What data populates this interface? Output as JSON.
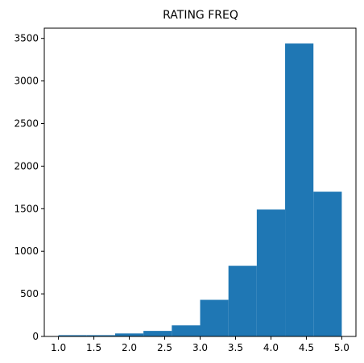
{
  "chart_data": {
    "type": "histogram",
    "title": "RATING FREQ",
    "xlabel": "",
    "ylabel": "",
    "xlim": [
      0.8,
      5.2
    ],
    "ylim": [
      0,
      3620
    ],
    "x_ticks": [
      "1.0",
      "1.5",
      "2.0",
      "2.5",
      "3.0",
      "3.5",
      "4.0",
      "4.5",
      "5.0"
    ],
    "y_ticks": [
      "0",
      "500",
      "1000",
      "1500",
      "2000",
      "2500",
      "3000",
      "3500"
    ],
    "bins": [
      {
        "from": 1.0,
        "to": 1.4,
        "value": 15
      },
      {
        "from": 1.4,
        "to": 1.8,
        "value": 15
      },
      {
        "from": 1.8,
        "to": 2.2,
        "value": 35
      },
      {
        "from": 2.2,
        "to": 2.6,
        "value": 65
      },
      {
        "from": 2.6,
        "to": 3.0,
        "value": 130
      },
      {
        "from": 3.0,
        "to": 3.4,
        "value": 430
      },
      {
        "from": 3.4,
        "to": 3.8,
        "value": 830
      },
      {
        "from": 3.8,
        "to": 4.2,
        "value": 1490
      },
      {
        "from": 4.2,
        "to": 4.6,
        "value": 3440
      },
      {
        "from": 4.6,
        "to": 5.0,
        "value": 1700
      }
    ],
    "bar_color": "#1f77b4",
    "grid": false,
    "legend": "none"
  }
}
